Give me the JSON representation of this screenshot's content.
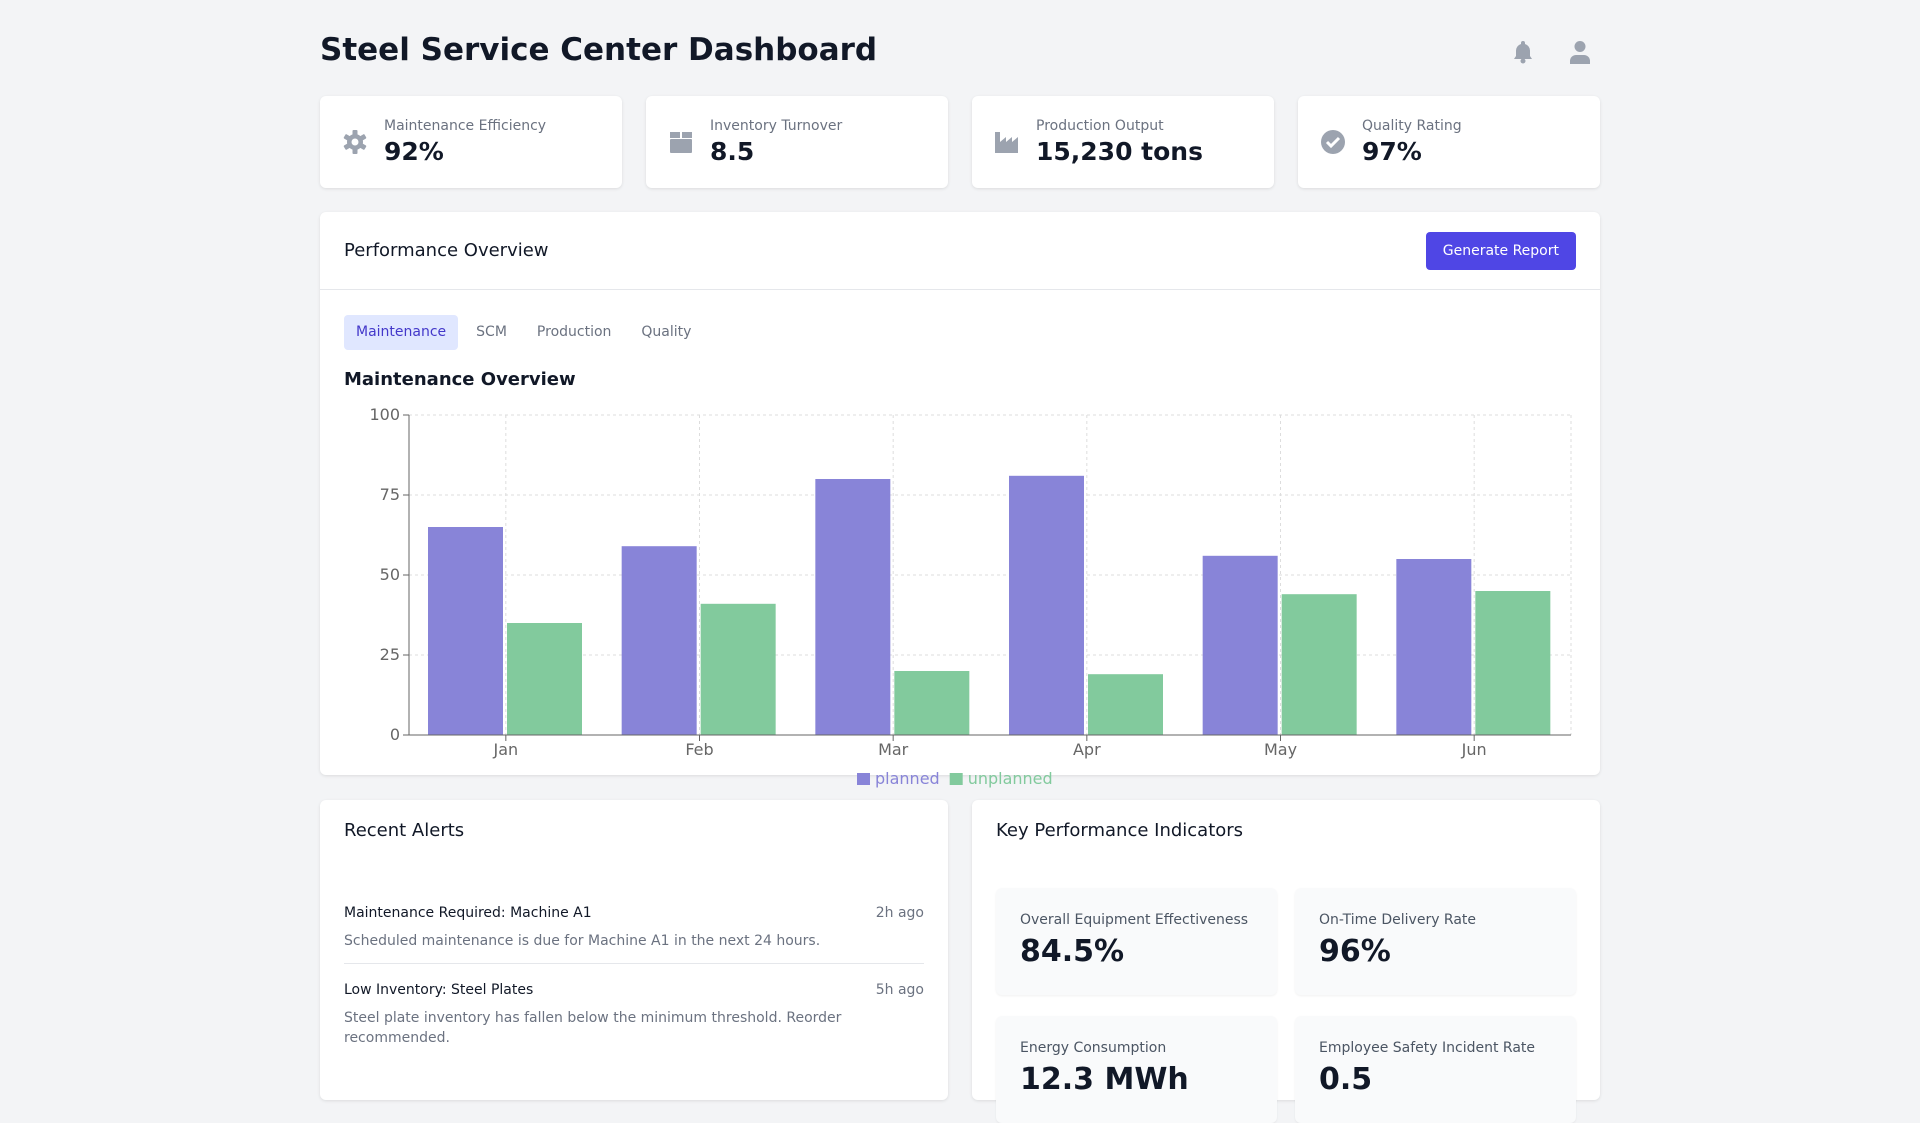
{
  "header": {
    "title": "Steel Service Center Dashboard",
    "icons": [
      "bell-icon",
      "user-icon"
    ]
  },
  "stats": [
    {
      "label": "Maintenance Efficiency",
      "value": "92%",
      "icon": "gear-icon"
    },
    {
      "label": "Inventory Turnover",
      "value": "8.5",
      "icon": "box-icon"
    },
    {
      "label": "Production Output",
      "value": "15,230 tons",
      "icon": "factory-icon"
    },
    {
      "label": "Quality Rating",
      "value": "97%",
      "icon": "check-circle-icon"
    }
  ],
  "performance": {
    "title": "Performance Overview",
    "button": "Generate Report",
    "tabs": [
      "Maintenance",
      "SCM",
      "Production",
      "Quality"
    ],
    "active_tab": "Maintenance"
  },
  "chart_data": {
    "type": "bar",
    "title": "Maintenance Overview",
    "categories": [
      "Jan",
      "Feb",
      "Mar",
      "Apr",
      "May",
      "Jun"
    ],
    "series": [
      {
        "name": "planned",
        "values": [
          65,
          59,
          80,
          81,
          56,
          55
        ],
        "color": "#8884d8"
      },
      {
        "name": "unplanned",
        "values": [
          35,
          41,
          20,
          19,
          44,
          45
        ],
        "color": "#82ca9d"
      }
    ],
    "yticks": [
      0,
      25,
      50,
      75,
      100
    ],
    "ylim": [
      0,
      100
    ],
    "grid": true,
    "legend": "bottom"
  },
  "alerts": {
    "title": "Recent Alerts",
    "items": [
      {
        "title": "Maintenance Required: Machine A1",
        "time": "2h ago",
        "desc": "Scheduled maintenance is due for Machine A1 in the next 24 hours."
      },
      {
        "title": "Low Inventory: Steel Plates",
        "time": "5h ago",
        "desc": "Steel plate inventory has fallen below the minimum threshold. Reorder recommended."
      }
    ]
  },
  "kpis": {
    "title": "Key Performance Indicators",
    "items": [
      {
        "label": "Overall Equipment Effectiveness",
        "value": "84.5%"
      },
      {
        "label": "On-Time Delivery Rate",
        "value": "96%"
      },
      {
        "label": "Energy Consumption",
        "value": "12.3 MWh"
      },
      {
        "label": "Employee Safety Incident Rate",
        "value": "0.5"
      }
    ]
  }
}
